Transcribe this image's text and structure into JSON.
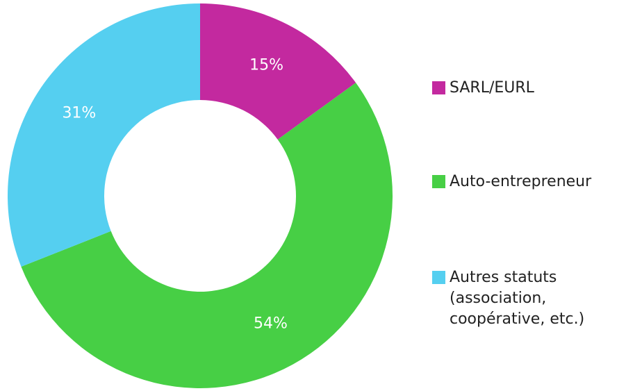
{
  "chart_data": {
    "type": "donut",
    "categories": [
      "SARL/EURL",
      "Auto-entrepreneur",
      "Autres statuts (association, coopérative, etc.)"
    ],
    "values": [
      15,
      54,
      31
    ],
    "value_labels": [
      "15%",
      "54%",
      "31%"
    ],
    "colors": [
      "#c3299f",
      "#47cf45",
      "#55cff0"
    ],
    "legend": "right"
  }
}
